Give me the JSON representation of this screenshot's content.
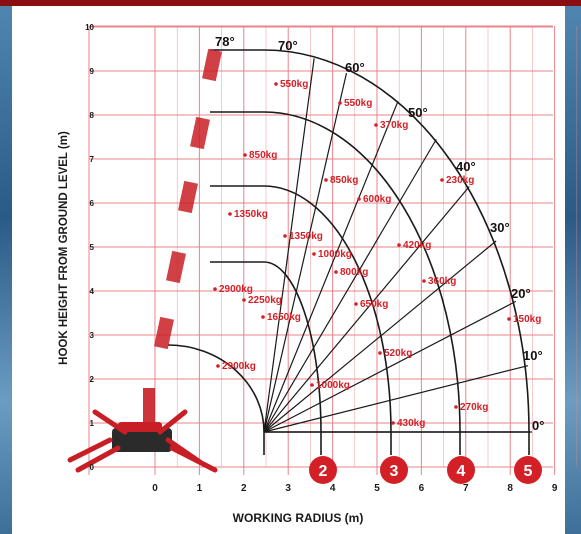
{
  "y_axis_title": "HOOK HEIGHT FROM GROUND LEVEL (m)",
  "x_axis_title": "WORKING RADIUS (m)",
  "x_ticks": [
    "0",
    "1",
    "2",
    "3",
    "4",
    "5",
    "6",
    "7",
    "8",
    "9"
  ],
  "y_ticks": [
    "0",
    "1",
    "2",
    "3",
    "4",
    "5",
    "6",
    "7",
    "8",
    "9",
    "10"
  ],
  "angles": [
    "78°",
    "70°",
    "60°",
    "50°",
    "40°",
    "30°",
    "20°",
    "10°",
    "0°"
  ],
  "boom_sections": [
    "2",
    "3",
    "4",
    "5"
  ],
  "loads": [
    {
      "text": "550kg"
    },
    {
      "text": "550kg"
    },
    {
      "text": "370kg"
    },
    {
      "text": "850kg"
    },
    {
      "text": "850kg"
    },
    {
      "text": "600kg"
    },
    {
      "text": "230kg"
    },
    {
      "text": "1350kg"
    },
    {
      "text": "1350kg"
    },
    {
      "text": "1000kg"
    },
    {
      "text": "800kg"
    },
    {
      "text": "420kg"
    },
    {
      "text": "360kg"
    },
    {
      "text": "2900kg"
    },
    {
      "text": "2250kg"
    },
    {
      "text": "1650kg"
    },
    {
      "text": "650kg"
    },
    {
      "text": "150kg"
    },
    {
      "text": "2900kg"
    },
    {
      "text": "520kg"
    },
    {
      "text": "1000kg"
    },
    {
      "text": "270kg"
    },
    {
      "text": "430kg"
    }
  ],
  "colors": {
    "grid": "#e8848a",
    "curve": "#1a1a1a",
    "load": "#d31f26",
    "badge": "#d31f26",
    "frame": "#8b0f12"
  }
}
